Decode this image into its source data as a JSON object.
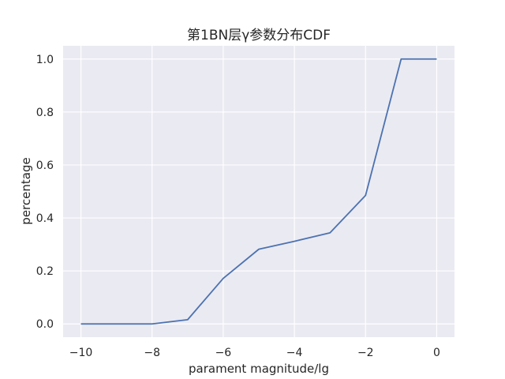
{
  "chart_data": {
    "type": "line",
    "title": "第1BN层γ参数分布CDF",
    "xlabel": "parament magnitude/lg",
    "ylabel": "percentage",
    "xlim": [
      -10.5,
      0.5
    ],
    "ylim": [
      -0.05,
      1.05
    ],
    "x_ticks": [
      -10,
      -8,
      -6,
      -4,
      -2,
      0
    ],
    "x_tick_labels": [
      "−10",
      "−8",
      "−6",
      "−4",
      "−2",
      "0"
    ],
    "y_ticks": [
      0.0,
      0.2,
      0.4,
      0.6,
      0.8,
      1.0
    ],
    "y_tick_labels": [
      "0.0",
      "0.2",
      "0.4",
      "0.6",
      "0.8",
      "1.0"
    ],
    "grid": true,
    "series": [
      {
        "color": "#4c72b0",
        "x": [
          -10,
          -9,
          -8,
          -7,
          -6,
          -5,
          -4,
          -3,
          -2,
          -1,
          0
        ],
        "y": [
          0.0,
          0.0,
          0.0,
          0.016,
          0.172,
          0.282,
          0.312,
          0.344,
          0.485,
          1.0,
          1.0
        ]
      }
    ]
  }
}
